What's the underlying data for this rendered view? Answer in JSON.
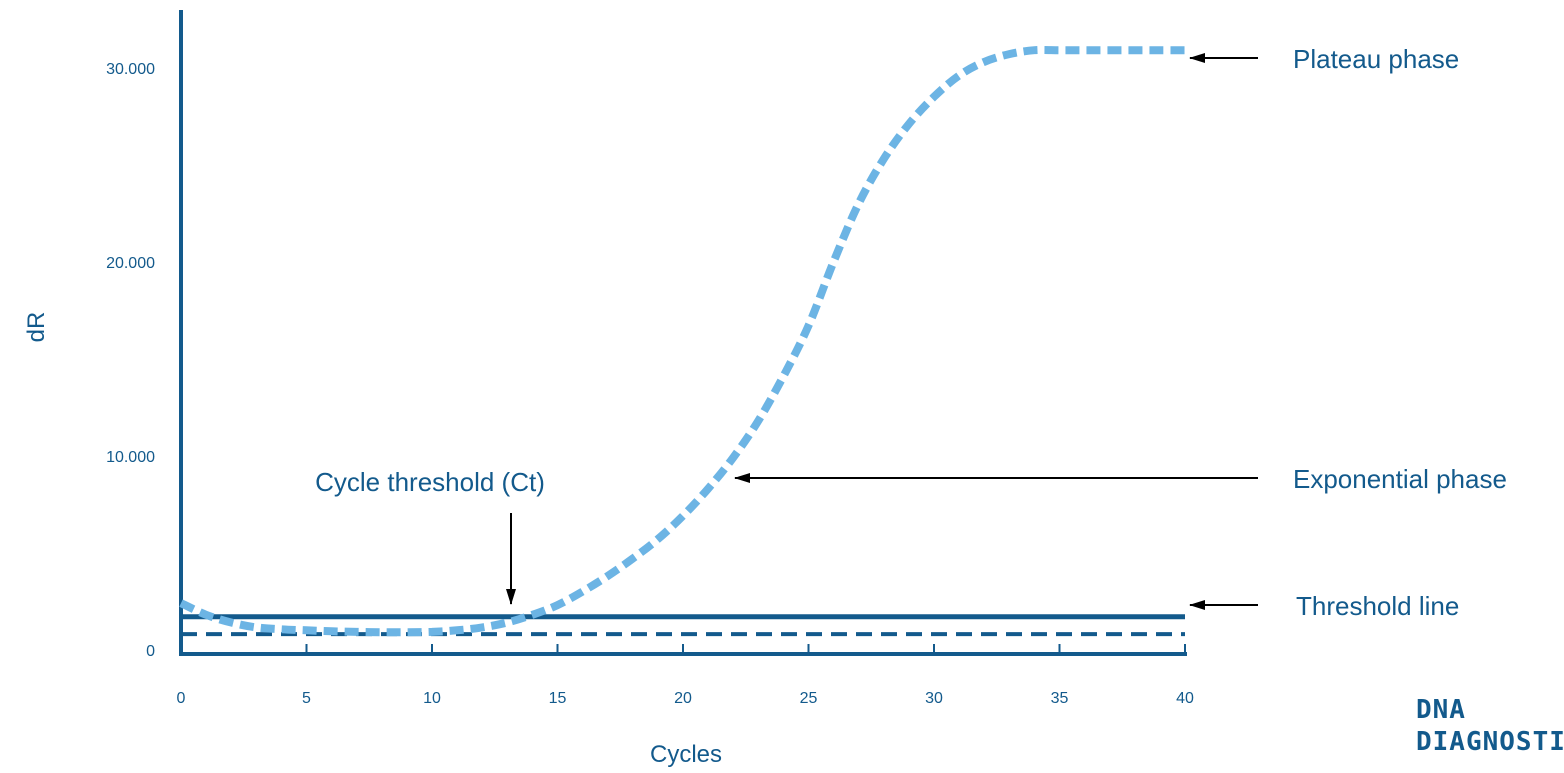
{
  "chart_data": {
    "type": "line",
    "xlabel": "Cycles",
    "ylabel": "dR",
    "xlim": [
      0,
      40
    ],
    "ylim": [
      -1000,
      32000
    ],
    "x_ticks": [
      0,
      5,
      10,
      15,
      20,
      25,
      30,
      35,
      40
    ],
    "x_tick_labels": [
      "0",
      "5",
      "10",
      "15",
      "20",
      "25",
      "30",
      "35",
      "40"
    ],
    "y_ticks": [
      0,
      10000,
      20000,
      30000
    ],
    "y_tick_labels": [
      "0",
      "10.000",
      "20.000",
      "30.000"
    ],
    "grid": false,
    "series": [
      {
        "style": "dashed-thick",
        "color": "#6cb4e4",
        "x": [
          0,
          1,
          2,
          3,
          4,
          5,
          6,
          7,
          8,
          9,
          10,
          11,
          12,
          13,
          14,
          15,
          16,
          17,
          18,
          19,
          20,
          21,
          22,
          23,
          24,
          25,
          26,
          27,
          28,
          29,
          30,
          31,
          32,
          33,
          34,
          35,
          36,
          37,
          38,
          39,
          40
        ],
        "values": [
          1900,
          1300,
          900,
          650,
          550,
          500,
          450,
          420,
          400,
          400,
          420,
          500,
          650,
          900,
          1300,
          1800,
          2500,
          3300,
          4200,
          5200,
          6400,
          7800,
          9400,
          11300,
          13600,
          16200,
          19500,
          22500,
          24800,
          26600,
          28000,
          29100,
          29800,
          30200,
          30400,
          30400,
          30400,
          30400,
          30400,
          30400,
          30400
        ]
      }
    ],
    "reference_lines": [
      {
        "y": 1200,
        "style": "solid",
        "color": "#135a8c"
      },
      {
        "y": 300,
        "style": "dashed",
        "color": "#135a8c"
      }
    ],
    "annotations": [
      {
        "text": "Plateau phase",
        "target_x": 40,
        "target_y": 30400
      },
      {
        "text": "Exponential phase",
        "target_x": 22.2,
        "target_y": 8200
      },
      {
        "text": "Threshold line",
        "target_x": 40,
        "target_y": 1200
      },
      {
        "text": "Cycle threshold (Ct)",
        "target_x": 13.2,
        "target_y": 1200
      }
    ]
  },
  "logo": {
    "line1": "DNA",
    "line2": "DIAGNOSTICS"
  },
  "colors": {
    "axis": "#135a8c",
    "text": "#135a8c",
    "curve": "#6cb4e4",
    "arrow": "#000000"
  }
}
